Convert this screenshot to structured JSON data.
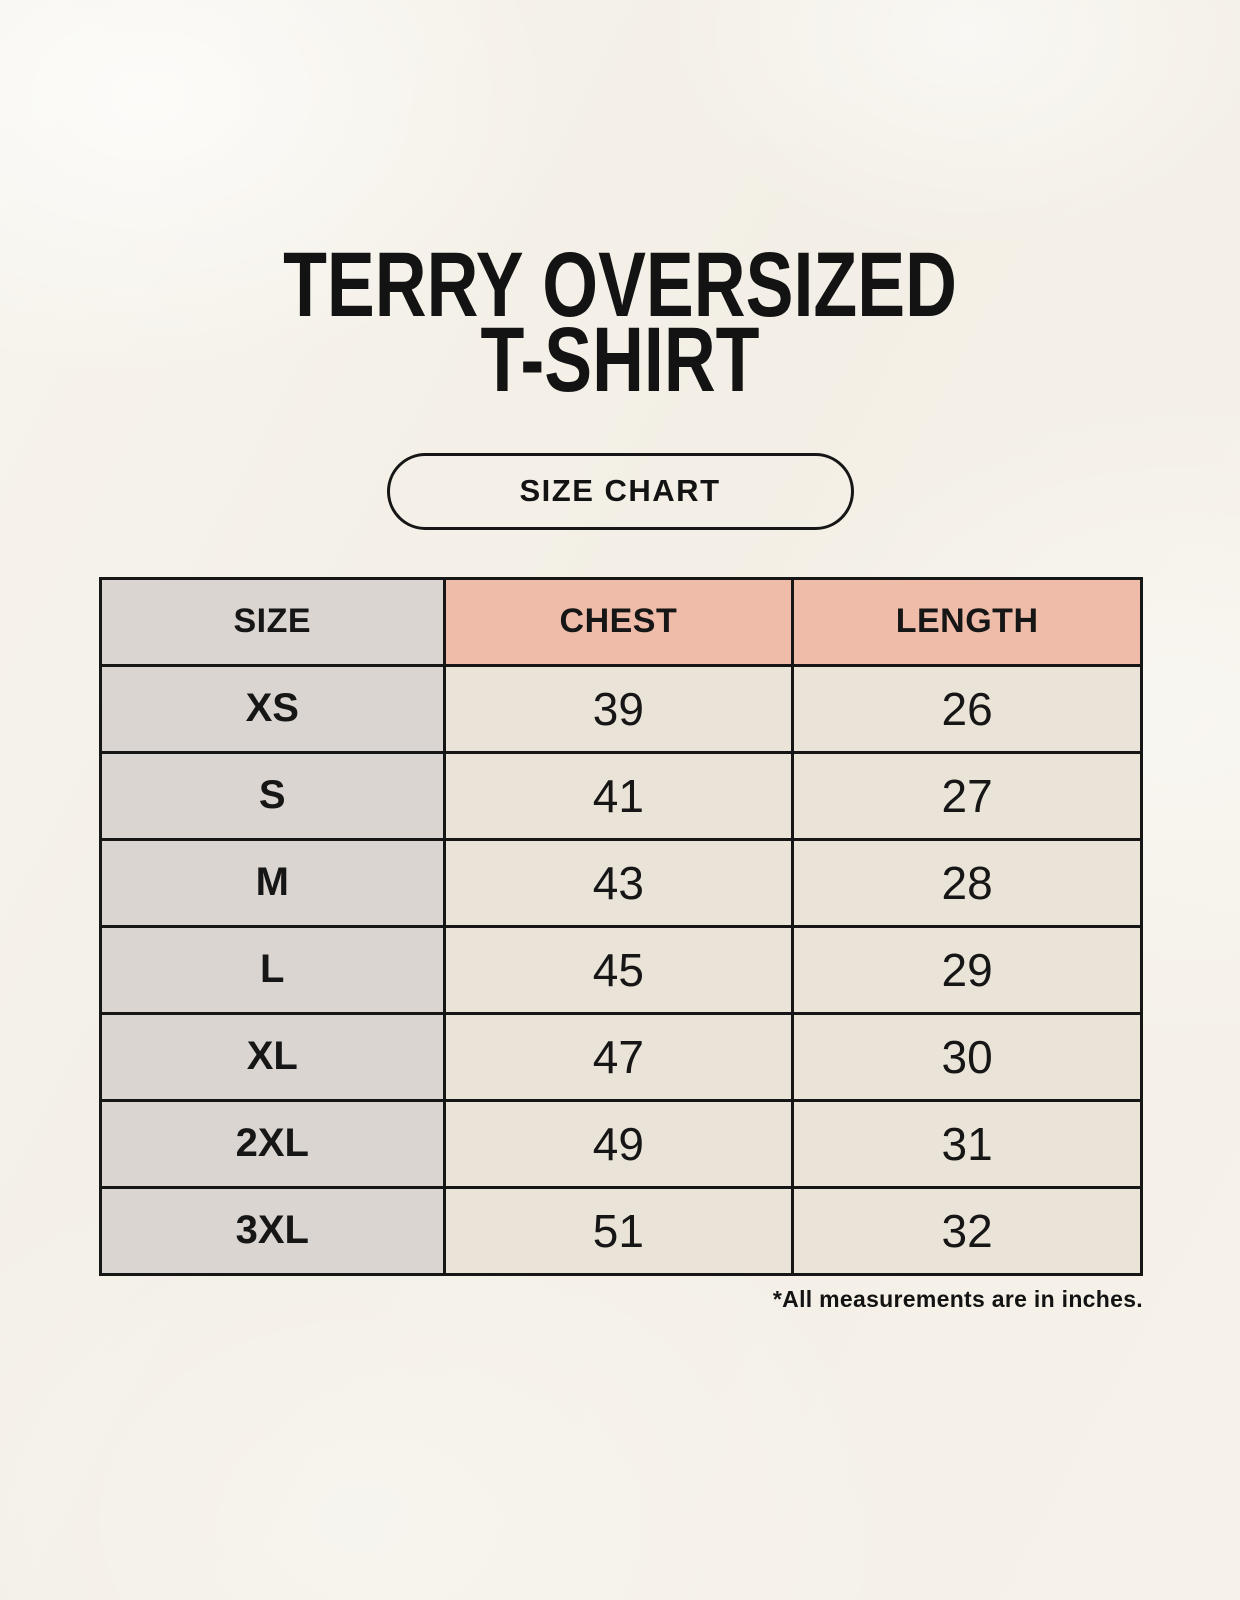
{
  "header": {
    "title_line1": "TERRY OVERSIZED",
    "title_line2": "T-SHIRT",
    "badge_label": "SIZE CHART"
  },
  "chart_data": {
    "type": "table",
    "title": "TERRY OVERSIZED T-SHIRT",
    "columns": [
      "SIZE",
      "CHEST",
      "LENGTH"
    ],
    "rows": [
      {
        "size": "XS",
        "chest": 39,
        "length": 26
      },
      {
        "size": "S",
        "chest": 41,
        "length": 27
      },
      {
        "size": "M",
        "chest": 43,
        "length": 28
      },
      {
        "size": "L",
        "chest": 45,
        "length": 29
      },
      {
        "size": "XL",
        "chest": 47,
        "length": 30
      },
      {
        "size": "2XL",
        "chest": 49,
        "length": 31
      },
      {
        "size": "3XL",
        "chest": 51,
        "length": 32
      }
    ],
    "units": "inches"
  },
  "footer": {
    "note": "*All measurements are in inches."
  },
  "colors": {
    "page_background": "#F5F1E9",
    "header_size_bg": "#DAD5D0",
    "header_measure_bg": "#EEBCA8",
    "size_column_bg": "#DAD5D0",
    "value_cell_bg": "#EAE4D8",
    "table_border": "#161616",
    "text": "#131313"
  }
}
